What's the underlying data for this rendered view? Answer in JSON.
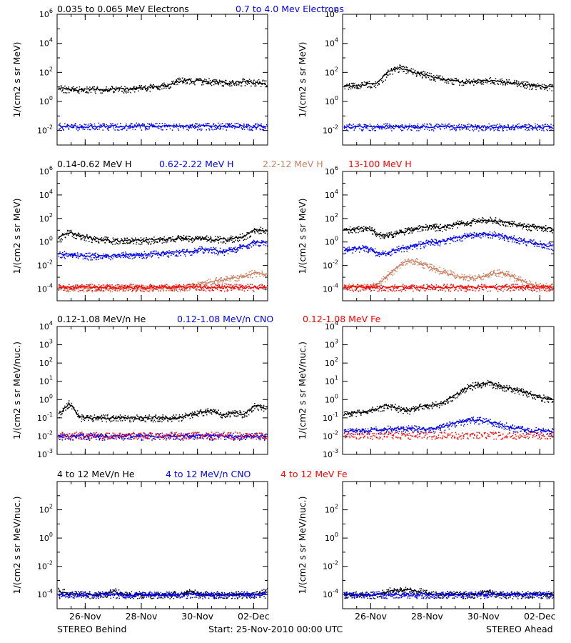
{
  "chart_data": [
    {
      "type": "scatter",
      "id": "electrons_behind",
      "panel_header": "electrons",
      "y_scale": "log",
      "ylim_exp": [
        -3,
        6
      ],
      "ytick_exps": [
        -2,
        0,
        2,
        4,
        6
      ],
      "ytick_labels": [
        "10-2",
        "100",
        "102",
        "104",
        "106"
      ],
      "ylabel": "1/(cm2 s sr MeV)",
      "series": [
        {
          "name": "0.035 to 0.065 MeV Electrons",
          "color": "#000000",
          "values_log10": [
            0.9,
            0.85,
            0.8,
            0.8,
            0.82,
            0.85,
            0.85,
            0.9,
            0.95,
            1.0,
            1.1,
            1.4,
            1.45,
            1.4,
            1.35,
            1.3,
            1.3,
            1.35,
            1.3,
            1.25
          ]
        },
        {
          "name": "0.7 to 4.0 Mev Electrons",
          "color": "#0000ff",
          "values_log10": [
            -1.7,
            -1.7,
            -1.75,
            -1.7,
            -1.7,
            -1.72,
            -1.7,
            -1.7,
            -1.7,
            -1.72,
            -1.7,
            -1.7,
            -1.7,
            -1.72,
            -1.7,
            -1.7,
            -1.7,
            -1.7,
            -1.72,
            -1.7
          ]
        }
      ]
    },
    {
      "type": "scatter",
      "id": "electrons_ahead",
      "y_scale": "log",
      "ylim_exp": [
        -3,
        6
      ],
      "ytick_exps": [
        -2,
        0,
        2,
        4,
        6
      ],
      "ytick_labels": [
        "10-2",
        "100",
        "102",
        "104",
        "106"
      ],
      "ylabel": "1/(cm2 s sr MeV)",
      "series": [
        {
          "name": "0.035 to 0.065 MeV Electrons",
          "color": "#000000",
          "values_log10": [
            1.1,
            1.1,
            1.15,
            1.2,
            2.0,
            2.3,
            2.1,
            1.9,
            1.7,
            1.5,
            1.4,
            1.35,
            1.4,
            1.45,
            1.4,
            1.3,
            1.2,
            1.1,
            1.0,
            1.0
          ]
        },
        {
          "name": "0.7 to 4.0 Mev Electrons",
          "color": "#0000ff",
          "values_log10": [
            -1.75,
            -1.75,
            -1.75,
            -1.75,
            -1.75,
            -1.75,
            -1.75,
            -1.75,
            -1.75,
            -1.75,
            -1.75,
            -1.75,
            -1.75,
            -1.75,
            -1.75,
            -1.75,
            -1.75,
            -1.75,
            -1.75,
            -1.75
          ]
        }
      ]
    },
    {
      "type": "scatter",
      "id": "protons_behind",
      "panel_header": "protons",
      "y_scale": "log",
      "ylim_exp": [
        -5,
        6
      ],
      "ytick_exps": [
        -4,
        -2,
        0,
        2,
        4,
        6
      ],
      "ytick_labels": [
        "10-4",
        "10-2",
        "100",
        "102",
        "104",
        "106"
      ],
      "ylabel": "1/(cm2 s sr MeV)",
      "series": [
        {
          "name": "0.14-0.62 MeV H",
          "color": "#000000",
          "values_log10": [
            0.4,
            0.8,
            0.5,
            0.3,
            0.2,
            0.1,
            0.1,
            0.1,
            0.15,
            0.2,
            0.25,
            0.3,
            0.3,
            0.3,
            0.25,
            0.2,
            0.3,
            0.5,
            1.0,
            1.0
          ]
        },
        {
          "name": "0.62-2.22 MeV H",
          "color": "#0000ff",
          "values_log10": [
            -1.0,
            -1.1,
            -1.2,
            -1.2,
            -1.2,
            -1.15,
            -1.1,
            -1.1,
            -1.05,
            -1.0,
            -0.95,
            -0.9,
            -0.8,
            -0.6,
            -0.7,
            -0.8,
            -0.6,
            -0.4,
            0.0,
            -0.1
          ]
        },
        {
          "name": "2.2-12 MeV H",
          "color": "#c88060",
          "values_log10": [
            -3.9,
            -3.9,
            -3.9,
            -3.9,
            -3.9,
            -3.9,
            -3.9,
            -3.9,
            -3.9,
            -3.9,
            -3.9,
            -3.9,
            -3.8,
            -3.6,
            -3.3,
            -3.2,
            -3.1,
            -2.9,
            -2.6,
            -2.8
          ]
        },
        {
          "name": "13-100 MeV H",
          "color": "#ff0000",
          "values_log10": [
            -3.85,
            -3.85,
            -3.85,
            -3.85,
            -3.85,
            -3.85,
            -3.85,
            -3.85,
            -3.85,
            -3.85,
            -3.85,
            -3.85,
            -3.85,
            -3.85,
            -3.85,
            -3.85,
            -3.85,
            -3.85,
            -3.85,
            -3.85
          ]
        }
      ]
    },
    {
      "type": "scatter",
      "id": "protons_ahead",
      "y_scale": "log",
      "ylim_exp": [
        -5,
        6
      ],
      "ytick_exps": [
        -4,
        -2,
        0,
        2,
        4,
        6
      ],
      "ytick_labels": [
        "10-4",
        "10-2",
        "100",
        "102",
        "104",
        "106"
      ],
      "ylabel": "1/(cm2 s sr MeV)",
      "series": [
        {
          "name": "0.14-0.62 MeV H",
          "color": "#000000",
          "values_log10": [
            1.0,
            1.1,
            1.2,
            0.7,
            0.5,
            0.8,
            1.0,
            1.2,
            1.3,
            1.2,
            1.5,
            1.6,
            1.8,
            1.9,
            1.8,
            1.6,
            1.4,
            1.3,
            1.2,
            1.1
          ]
        },
        {
          "name": "0.62-2.22 MeV H",
          "color": "#0000ff",
          "values_log10": [
            -0.7,
            -0.6,
            -0.5,
            -0.9,
            -1.0,
            -0.6,
            -0.4,
            -0.2,
            0.0,
            0.0,
            0.3,
            0.5,
            0.6,
            0.7,
            0.6,
            0.4,
            0.1,
            0.0,
            -0.2,
            -0.4
          ]
        },
        {
          "name": "2.2-12 MeV H",
          "color": "#c88060",
          "values_log10": [
            -3.8,
            -3.8,
            -3.8,
            -3.7,
            -2.8,
            -2.0,
            -1.5,
            -1.8,
            -2.2,
            -2.5,
            -2.8,
            -3.0,
            -3.1,
            -2.8,
            -2.6,
            -2.8,
            -3.2,
            -3.6,
            -3.8,
            -3.8
          ]
        },
        {
          "name": "13-100 MeV H",
          "color": "#ff0000",
          "values_log10": [
            -3.85,
            -3.85,
            -3.85,
            -3.85,
            -3.85,
            -3.85,
            -3.85,
            -3.85,
            -3.85,
            -3.85,
            -3.85,
            -3.85,
            -3.85,
            -3.85,
            -3.85,
            -3.85,
            -3.85,
            -3.85,
            -3.85,
            -3.85
          ]
        }
      ]
    },
    {
      "type": "scatter",
      "id": "heavy_low_behind",
      "panel_header": "heavy_low",
      "y_scale": "log",
      "ylim_exp": [
        -3,
        4
      ],
      "ytick_exps": [
        -3,
        -2,
        -1,
        0,
        1,
        2,
        3,
        4
      ],
      "ytick_labels": [
        "10-3",
        "10-2",
        "10-1",
        "100",
        "101",
        "102",
        "103",
        "104"
      ],
      "ylabel": "1/(cm2 s sr MeV/nuc.)",
      "series": [
        {
          "name": "0.12-1.08 MeV/n He",
          "color": "#000000",
          "values_log10": [
            -0.8,
            -0.2,
            -1.0,
            -1.0,
            -1.0,
            -1.0,
            -1.0,
            -1.0,
            -1.0,
            -1.0,
            -1.0,
            -1.0,
            -0.8,
            -0.7,
            -0.6,
            -0.8,
            -0.7,
            -0.8,
            -0.3,
            -0.5
          ]
        },
        {
          "name": "0.12-1.08 MeV/n CNO",
          "color": "#0000ff",
          "values_log10": [
            -2.0,
            -2.0,
            -2.0,
            -2.0,
            -2.0,
            -2.0,
            -2.0,
            -2.0,
            -2.0,
            -2.0,
            -2.0,
            -2.0,
            -2.0,
            -2.0,
            -2.0,
            -2.0,
            -2.0,
            -2.0,
            -2.0,
            -2.0
          ]
        },
        {
          "name": "0.12-1.08 MeV Fe",
          "color": "#ff0000",
          "values_log10": [
            -1.95,
            -1.95,
            -1.95,
            -1.95,
            -1.95,
            -1.95,
            -1.95,
            -1.95,
            -1.95,
            -1.95,
            -1.95,
            -1.95,
            -1.95,
            -1.95,
            -1.95,
            -1.95,
            -1.95,
            -1.95,
            -1.95,
            -1.95
          ]
        }
      ]
    },
    {
      "type": "scatter",
      "id": "heavy_low_ahead",
      "y_scale": "log",
      "ylim_exp": [
        -3,
        4
      ],
      "ytick_exps": [
        -3,
        -2,
        -1,
        0,
        1,
        2,
        3,
        4
      ],
      "ytick_labels": [
        "10-3",
        "10-2",
        "10-1",
        "100",
        "101",
        "102",
        "103",
        "104"
      ],
      "ylabel": "1/(cm2 s sr MeV/nuc.)",
      "series": [
        {
          "name": "0.12-1.08 MeV/n He",
          "color": "#000000",
          "values_log10": [
            -0.8,
            -0.7,
            -0.7,
            -0.5,
            -0.3,
            -0.5,
            -0.6,
            -0.4,
            -0.3,
            -0.2,
            0.2,
            0.6,
            0.8,
            0.9,
            0.8,
            0.6,
            0.5,
            0.3,
            0.1,
            0.0
          ]
        },
        {
          "name": "0.12-1.08 MeV/n CNO",
          "color": "#0000ff",
          "values_log10": [
            -1.7,
            -1.7,
            -1.7,
            -1.65,
            -1.6,
            -1.6,
            -1.6,
            -1.6,
            -1.6,
            -1.5,
            -1.3,
            -1.2,
            -1.1,
            -1.2,
            -1.3,
            -1.5,
            -1.6,
            -1.7,
            -1.7,
            -1.7
          ]
        },
        {
          "name": "0.12-1.08 MeV Fe",
          "color": "#ff0000",
          "values_log10": [
            -1.95,
            -1.95,
            -1.95,
            -1.95,
            -1.95,
            -1.95,
            -1.95,
            -1.95,
            -1.95,
            -1.95,
            -1.95,
            -1.95,
            -1.95,
            -1.95,
            -1.95,
            -1.95,
            -1.95,
            -1.95,
            -1.95,
            -1.95
          ]
        }
      ]
    },
    {
      "type": "scatter",
      "id": "heavy_high_behind",
      "panel_header": "heavy_high",
      "y_scale": "log",
      "ylim_exp": [
        -5,
        4
      ],
      "ytick_exps": [
        -4,
        -2,
        0,
        2
      ],
      "ytick_labels": [
        "10-4",
        "10-2",
        "100",
        "102"
      ],
      "ylabel": "1/(cm2 s sr MeV/nuc.)",
      "series": [
        {
          "name": "4 to 12 MeV/n He",
          "color": "#000000",
          "values_log10": [
            -3.75,
            -3.95,
            -4.0,
            -4.0,
            -4.0,
            -3.75,
            -4.0,
            -4.0,
            -4.0,
            -4.0,
            -4.0,
            -4.0,
            -3.75,
            -4.0,
            -4.0,
            -4.0,
            -4.0,
            -4.0,
            -4.0,
            -3.75
          ]
        },
        {
          "name": "4 to 12 MeV/n CNO",
          "color": "#0000ff",
          "values_log10": [
            -4.0,
            -4.0,
            -4.0,
            -4.0,
            -4.0,
            -4.0,
            -4.0,
            -4.0,
            -4.0,
            -4.0,
            -4.0,
            -4.0,
            -4.0,
            -4.0,
            -4.0,
            -4.0,
            -4.0,
            -4.0,
            -4.0,
            -4.0
          ]
        },
        {
          "name": "4 to 12 MeV Fe",
          "color": "#ff0000",
          "values_log10": []
        }
      ]
    },
    {
      "type": "scatter",
      "id": "heavy_high_ahead",
      "y_scale": "log",
      "ylim_exp": [
        -5,
        4
      ],
      "ytick_exps": [
        -4,
        -2,
        0,
        2
      ],
      "ytick_labels": [
        "10-4",
        "10-2",
        "100",
        "102"
      ],
      "ylabel": "1/(cm2 s sr MeV/nuc.)",
      "series": [
        {
          "name": "4 to 12 MeV/n He",
          "color": "#000000",
          "values_log10": [
            -4.0,
            -4.0,
            -4.0,
            -4.0,
            -3.75,
            -3.7,
            -3.7,
            -3.8,
            -4.0,
            -4.0,
            -4.0,
            -4.0,
            -4.0,
            -3.8,
            -4.0,
            -4.0,
            -4.0,
            -4.0,
            -4.0,
            -4.0
          ]
        },
        {
          "name": "4 to 12 MeV/n CNO",
          "color": "#0000ff",
          "values_log10": [
            -4.0,
            -4.0,
            -4.0,
            -4.0,
            -4.0,
            -4.0,
            -4.0,
            -4.0,
            -4.0,
            -4.0,
            -4.0,
            -4.0,
            -4.0,
            -4.0,
            -4.0,
            -4.0,
            -4.0,
            -4.0,
            -4.0,
            -4.0
          ]
        },
        {
          "name": "4 to 12 MeV Fe",
          "color": "#ff0000",
          "values_log10": []
        }
      ]
    }
  ],
  "headers": {
    "electrons": [
      {
        "text": "0.035 to 0.065 MeV Electrons",
        "color": "#000000"
      },
      {
        "text": "0.7 to 4.0 Mev Electrons",
        "color": "#0000ff"
      }
    ],
    "protons": [
      {
        "text": "0.14-0.62 MeV H",
        "color": "#000000"
      },
      {
        "text": "0.62-2.22 MeV H",
        "color": "#0000ff"
      },
      {
        "text": "2.2-12 MeV H",
        "color": "#c88060"
      },
      {
        "text": "13-100 MeV H",
        "color": "#ff0000"
      }
    ],
    "heavy_low": [
      {
        "text": "0.12-1.08 MeV/n He",
        "color": "#000000"
      },
      {
        "text": "0.12-1.08 MeV/n CNO",
        "color": "#0000ff"
      },
      {
        "text": "0.12-1.08 MeV Fe",
        "color": "#ff0000"
      }
    ],
    "heavy_high": [
      {
        "text": "4 to 12 MeV/n He",
        "color": "#000000"
      },
      {
        "text": "4 to 12 MeV/n CNO",
        "color": "#0000ff"
      },
      {
        "text": "4 to 12 MeV Fe",
        "color": "#ff0000"
      }
    ]
  },
  "x_axis": {
    "start": "2010-11-25T00:00",
    "end": "2010-12-02T12:00",
    "tick_dates": [
      "2010-11-26",
      "2010-11-28",
      "2010-11-30",
      "2010-12-02"
    ],
    "tick_labels": [
      "26-Nov",
      "28-Nov",
      "30-Nov",
      "02-Dec"
    ],
    "minor_tick_interval_hours": 12
  },
  "footer": {
    "left": "STEREO Behind",
    "center": "Start: 25-Nov-2010 00:00 UTC",
    "right": "STEREO Ahead"
  }
}
